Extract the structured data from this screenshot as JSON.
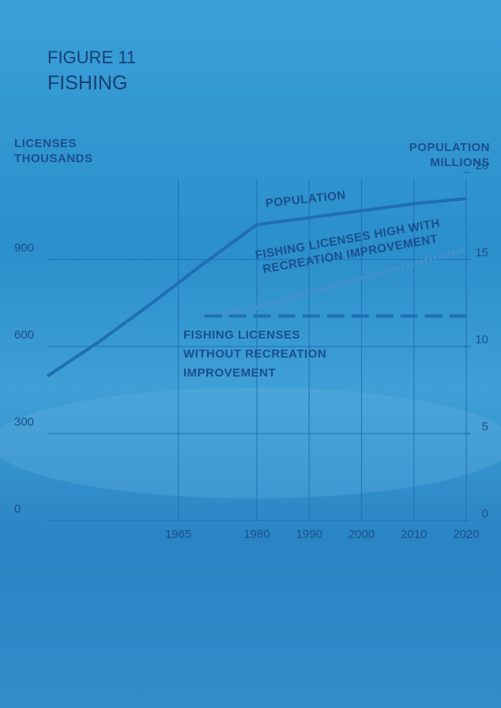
{
  "chart_data": {
    "type": "line",
    "figure": "FIGURE 11",
    "title": "FISHING",
    "ylabel": "LICENSES THOUSANDS",
    "y2label": "POPULATION MILLIONS",
    "x": [
      1940,
      1950,
      1960,
      1970,
      1980,
      1990,
      2000,
      2010,
      2020
    ],
    "xlim": [
      1940,
      2020
    ],
    "xticks": [
      1965,
      1980,
      1990,
      2000,
      2010,
      2020
    ],
    "ylim": [
      0,
      1200
    ],
    "yticks": [
      0,
      300,
      600,
      900
    ],
    "y2lim": [
      0,
      20
    ],
    "y2ticks": [
      0,
      5,
      10,
      15,
      20
    ],
    "grid": true,
    "series": [
      {
        "name": "POPULATION",
        "color": "#1f6fb2",
        "axis": "y2",
        "style": "solid",
        "values": [
          8.3,
          10.3,
          12.5,
          14.8,
          17.0,
          17.4,
          17.8,
          18.2,
          18.5
        ]
      },
      {
        "name": "FISHING LICENSES HIGH WITH RECREATION IMPROVEMENT",
        "color": "#4a90d0",
        "style": "dotted",
        "values": [
          null,
          null,
          null,
          705,
          735,
          785,
          835,
          885,
          935
        ]
      },
      {
        "name": "FISHING LICENSES WITHOUT RECREATION IMPROVEMENT",
        "color": "#1f6fb2",
        "style": "dashed",
        "values": [
          null,
          null,
          null,
          705,
          705,
          705,
          705,
          705,
          705
        ]
      }
    ]
  }
}
